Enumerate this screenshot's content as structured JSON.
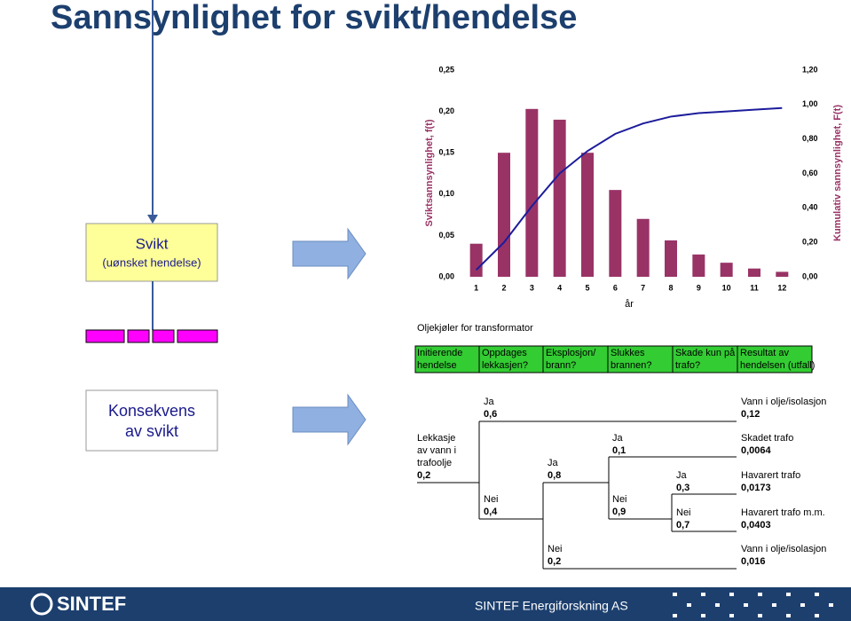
{
  "slide": {
    "title": "Sannsynlighet for svikt/hendelse",
    "logo": "SINTEF",
    "footer": "SINTEF Energiforskning AS"
  },
  "boxes": {
    "failure": [
      "Svikt",
      "(uønsket hendelse)"
    ],
    "consequence": [
      "Konsekvens",
      "av svikt"
    ]
  },
  "chart_data": {
    "type": "bar",
    "categories": [
      "1",
      "2",
      "3",
      "4",
      "5",
      "6",
      "7",
      "8",
      "9",
      "10",
      "11",
      "12"
    ],
    "xlabel": "år",
    "ylabel": "Sviktsannsynlighet, f(t)",
    "y2label": "Kumulativ sannsynlighet, F(t)",
    "series": [
      {
        "type": "bar",
        "color": "#993366",
        "values": [
          0.04,
          0.15,
          0.203,
          0.19,
          0.15,
          0.105,
          0.07,
          0.044,
          0.027,
          0.017,
          0.01,
          0.006
        ]
      },
      {
        "type": "line",
        "axis": "y2",
        "color": "#1c1c9c",
        "values": [
          0.04,
          0.2,
          0.41,
          0.6,
          0.73,
          0.83,
          0.89,
          0.93,
          0.95,
          0.96,
          0.97,
          0.98
        ]
      }
    ],
    "ylim": [
      0,
      0.25
    ],
    "yticks": [
      {
        "value": 0,
        "label": "0,00"
      },
      {
        "value": 0.05,
        "label": "0,05"
      },
      {
        "value": 0.1,
        "label": "0,10"
      },
      {
        "value": 0.15,
        "label": "0,15"
      },
      {
        "value": 0.2,
        "label": "0,20"
      },
      {
        "value": 0.25,
        "label": "0,25"
      }
    ],
    "y2lim": [
      0,
      1.2
    ],
    "y2ticks": [
      {
        "value": 0,
        "label": "0,00"
      },
      {
        "value": 0.2,
        "label": "0,20"
      },
      {
        "value": 0.4,
        "label": "0,40"
      },
      {
        "value": 0.6,
        "label": "0,60"
      },
      {
        "value": 0.8,
        "label": "0,80"
      },
      {
        "value": 1,
        "label": "1,00"
      },
      {
        "value": 1.2,
        "label": "1,20"
      }
    ]
  },
  "event_tree": {
    "title": "Oljekjøler for transformator",
    "headers": [
      [
        "Initierende",
        "hendelse"
      ],
      [
        "Oppdages",
        "lekkasjen?"
      ],
      [
        "Eksplosjon/",
        "brann?"
      ],
      [
        "Slukkes",
        "brannen?"
      ],
      [
        "Skade kun på",
        "trafo?"
      ],
      [
        "Resultat av",
        "hendelsen (utfall)"
      ]
    ],
    "labels": [
      [
        "Ja",
        "0,6"
      ],
      [
        "Vann i olje/isolasjon",
        "0,12"
      ],
      [
        "Lekkasje",
        "av vann i",
        "trafoolje",
        "0,2"
      ],
      [
        "Ja",
        "0,1"
      ],
      [
        "Skadet trafo",
        "0,0064"
      ],
      [
        "Ja",
        "0,8"
      ],
      [
        "Ja",
        "0,3"
      ],
      [
        "Havarert trafo",
        "0,0173"
      ],
      [
        "Nei",
        "0,4"
      ],
      [
        "Nei",
        "0,9"
      ],
      [
        "Nei",
        "0,7"
      ],
      [
        "Havarert trafo m.m.",
        "0,0403"
      ],
      [
        "Nei",
        "0,2"
      ],
      [
        "Vann i olje/isolasjon",
        "0,016"
      ]
    ]
  }
}
